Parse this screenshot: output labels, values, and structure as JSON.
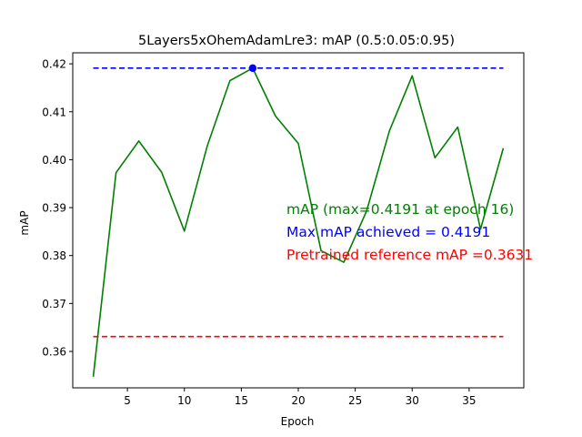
{
  "chart_data": {
    "type": "line",
    "title": "5Layers5xOhemAdamLre3:  mAP (0.5:0.05:0.95)",
    "xlabel": "Epoch",
    "ylabel": "mAP",
    "xlim": [
      0.2,
      39.8
    ],
    "ylim": [
      0.3524,
      0.4223
    ],
    "xticks": [
      5,
      10,
      15,
      20,
      25,
      30,
      35
    ],
    "yticks": [
      0.36,
      0.37,
      0.38,
      0.39,
      0.4,
      0.41,
      0.42
    ],
    "ytick_labels": [
      "0.36",
      "0.37",
      "0.38",
      "0.39",
      "0.40",
      "0.41",
      "0.42"
    ],
    "grid": false,
    "series": [
      {
        "color": "#008000",
        "x": [
          2,
          4,
          6,
          8,
          10,
          12,
          14,
          16,
          18,
          20,
          22,
          24,
          26,
          28,
          30,
          32,
          34,
          36,
          38
        ],
        "y": [
          0.3547,
          0.3973,
          0.4039,
          0.3974,
          0.3851,
          0.4028,
          0.4165,
          0.4191,
          0.4091,
          0.4034,
          0.381,
          0.3786,
          0.3893,
          0.406,
          0.4175,
          0.4004,
          0.4068,
          0.3855,
          0.4024
        ]
      }
    ],
    "reference_lines": [
      {
        "y": 0.4191,
        "x": [
          2,
          38
        ],
        "color": "#0000ff",
        "style": "dashed"
      },
      {
        "y": 0.3631,
        "x": [
          2,
          38
        ],
        "color": "#ff0000",
        "style": "dashed"
      }
    ],
    "max_marker": {
      "x": 16,
      "y": 0.4191,
      "color": "#0000ff"
    },
    "annotations": [
      {
        "text": "mAP (max=0.4191 at epoch 16)",
        "color": "#008000"
      },
      {
        "text": "Max mAP achieved = 0.4191",
        "color": "#0000ff"
      },
      {
        "text": "Pretrained reference mAP =0.3631",
        "color": "#ff0000"
      }
    ]
  }
}
